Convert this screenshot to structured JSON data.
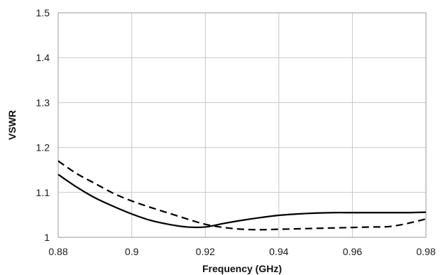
{
  "chart_data": {
    "type": "line",
    "title": "",
    "xlabel": "Frequency (GHz)",
    "ylabel": "VSWR",
    "xlim": [
      0.88,
      0.98
    ],
    "ylim": [
      1,
      1.5
    ],
    "xticks": [
      "0.88",
      "0.9",
      "0.92",
      "0.94",
      "0.96",
      "0.98"
    ],
    "yticks": [
      "1",
      "1.1",
      "1.2",
      "1.3",
      "1.4",
      "1.5"
    ],
    "grid": true,
    "legend": "none",
    "series": [
      {
        "style": "solid",
        "color": "#000000",
        "x": [
          0.88,
          0.885,
          0.89,
          0.895,
          0.9,
          0.905,
          0.91,
          0.915,
          0.92,
          0.925,
          0.93,
          0.935,
          0.94,
          0.945,
          0.95,
          0.955,
          0.96,
          0.965,
          0.97,
          0.975,
          0.98
        ],
        "y": [
          1.14,
          1.112,
          1.088,
          1.069,
          1.052,
          1.038,
          1.029,
          1.023,
          1.023,
          1.031,
          1.038,
          1.044,
          1.049,
          1.052,
          1.054,
          1.055,
          1.055,
          1.055,
          1.055,
          1.055,
          1.056
        ]
      },
      {
        "style": "dashed",
        "color": "#000000",
        "x": [
          0.88,
          0.885,
          0.89,
          0.895,
          0.9,
          0.905,
          0.91,
          0.915,
          0.92,
          0.925,
          0.93,
          0.935,
          0.94,
          0.945,
          0.95,
          0.955,
          0.96,
          0.965,
          0.97,
          0.975,
          0.98
        ],
        "y": [
          1.17,
          1.142,
          1.12,
          1.098,
          1.081,
          1.067,
          1.054,
          1.041,
          1.029,
          1.022,
          1.018,
          1.017,
          1.018,
          1.019,
          1.02,
          1.021,
          1.022,
          1.023,
          1.024,
          1.031,
          1.041
        ]
      }
    ]
  }
}
